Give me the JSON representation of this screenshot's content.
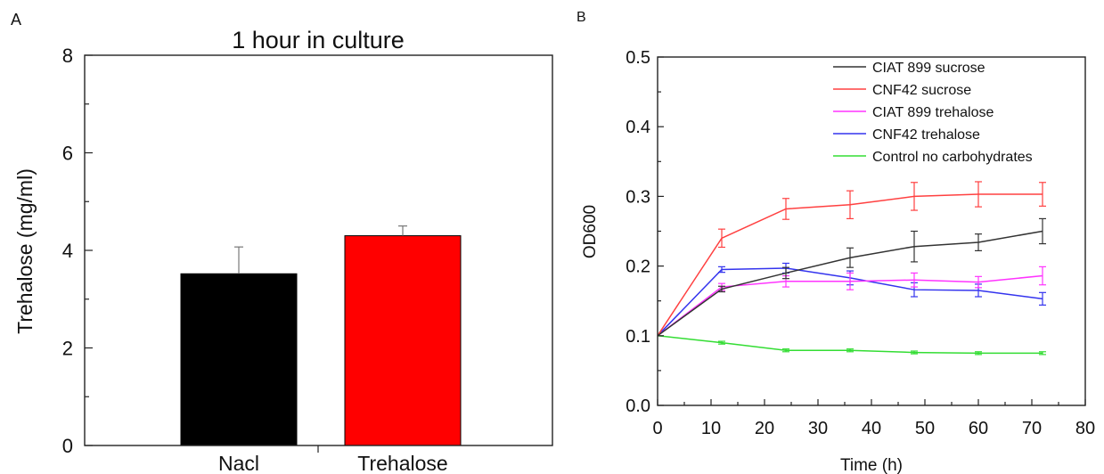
{
  "panels": {
    "a_label": "A",
    "b_label": "B"
  },
  "chart_data": [
    {
      "type": "bar",
      "title": "1 hour in culture",
      "categories": [
        "Nacl",
        "Trehalose"
      ],
      "values": [
        3.52,
        4.3
      ],
      "errors": [
        0.55,
        0.2
      ],
      "colors": [
        "#000000",
        "#ff0000"
      ],
      "ylabel": "Trehalose (mg/ml)",
      "xlabel": "",
      "ylim": [
        0,
        8
      ],
      "yticks": [
        "0",
        "2",
        "4",
        "6",
        "8"
      ],
      "grid": false
    },
    {
      "type": "line",
      "title": "",
      "xlabel": "Time (h)",
      "ylabel": "OD600",
      "xlim": [
        0,
        80
      ],
      "ylim": [
        0,
        0.5
      ],
      "xticks": [
        "0",
        "10",
        "20",
        "30",
        "40",
        "50",
        "60",
        "70",
        "80"
      ],
      "yticks": [
        "0.0",
        "0.1",
        "0.2",
        "0.3",
        "0.4",
        "0.5"
      ],
      "x": [
        0,
        12,
        24,
        36,
        48,
        60,
        72
      ],
      "legend_position": "top-right",
      "grid": false,
      "series": [
        {
          "name": "CIAT 899 sucrose",
          "color": "#333333",
          "values": [
            0.1,
            0.167,
            0.19,
            0.212,
            0.228,
            0.234,
            0.25
          ],
          "errors": [
            0,
            0.004,
            0.008,
            0.014,
            0.022,
            0.012,
            0.018
          ]
        },
        {
          "name": "CNF42 sucrose",
          "color": "#ff4040",
          "values": [
            0.1,
            0.24,
            0.282,
            0.288,
            0.3,
            0.303,
            0.303
          ],
          "errors": [
            0,
            0.013,
            0.015,
            0.02,
            0.02,
            0.018,
            0.017
          ]
        },
        {
          "name": "CIAT 899 trehalose",
          "color": "#ff33ff",
          "values": [
            0.1,
            0.17,
            0.178,
            0.178,
            0.18,
            0.177,
            0.186
          ],
          "errors": [
            0,
            0.005,
            0.008,
            0.012,
            0.01,
            0.008,
            0.013
          ]
        },
        {
          "name": "CNF42 trehalose",
          "color": "#3333ee",
          "values": [
            0.1,
            0.195,
            0.197,
            0.183,
            0.166,
            0.165,
            0.153
          ],
          "errors": [
            0,
            0.004,
            0.007,
            0.01,
            0.01,
            0.009,
            0.009
          ]
        },
        {
          "name": "Control no carbohydrates",
          "color": "#33dd33",
          "values": [
            0.1,
            0.09,
            0.079,
            0.079,
            0.076,
            0.075,
            0.075
          ],
          "errors": [
            0,
            0.002,
            0.002,
            0.002,
            0.002,
            0.002,
            0.002
          ]
        }
      ]
    }
  ]
}
